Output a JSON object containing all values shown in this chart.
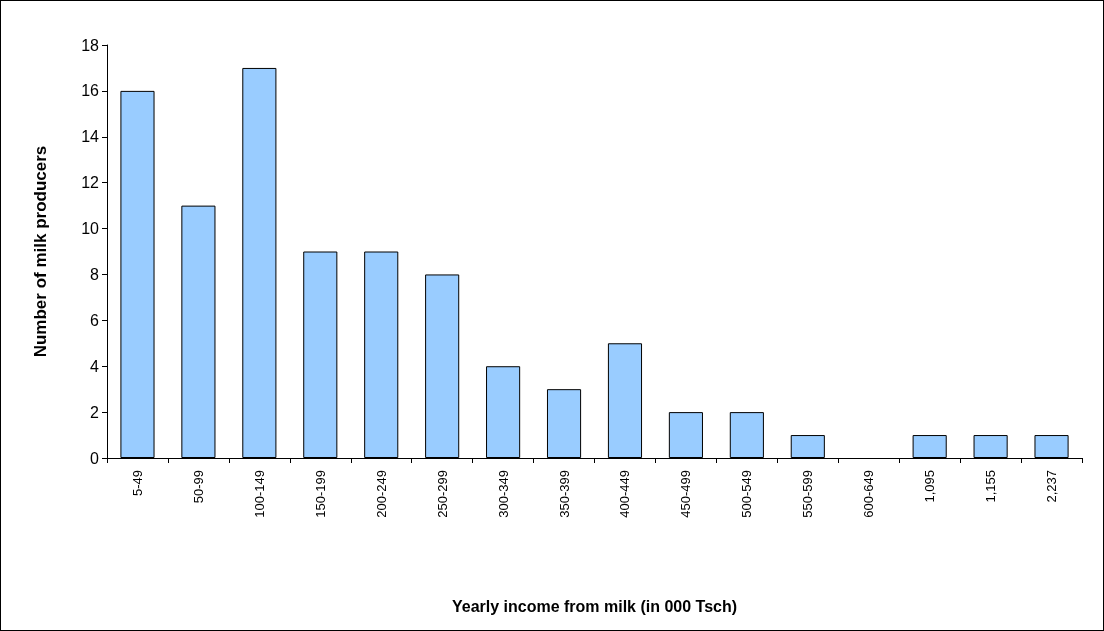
{
  "chart_data": {
    "type": "bar",
    "xlabel": "Yearly income from milk (in 000 Tsch)",
    "ylabel": "Number of milk producers",
    "categories": [
      "5-49",
      "50-99",
      "100-149",
      "150-199",
      "200-249",
      "250-299",
      "300-349",
      "350-399",
      "400-449",
      "450-499",
      "500-549",
      "550-599",
      "600-649",
      "1,095",
      "1,155",
      "2,237"
    ],
    "values": [
      16,
      11,
      17,
      9,
      9,
      8,
      4,
      3,
      5,
      2,
      2,
      1,
      0,
      1,
      1,
      1
    ],
    "color": "#99ccff",
    "ylim": [
      0,
      18
    ],
    "yticks": [
      0,
      2,
      4,
      6,
      8,
      10,
      12,
      14,
      16,
      18
    ],
    "grid": false
  }
}
